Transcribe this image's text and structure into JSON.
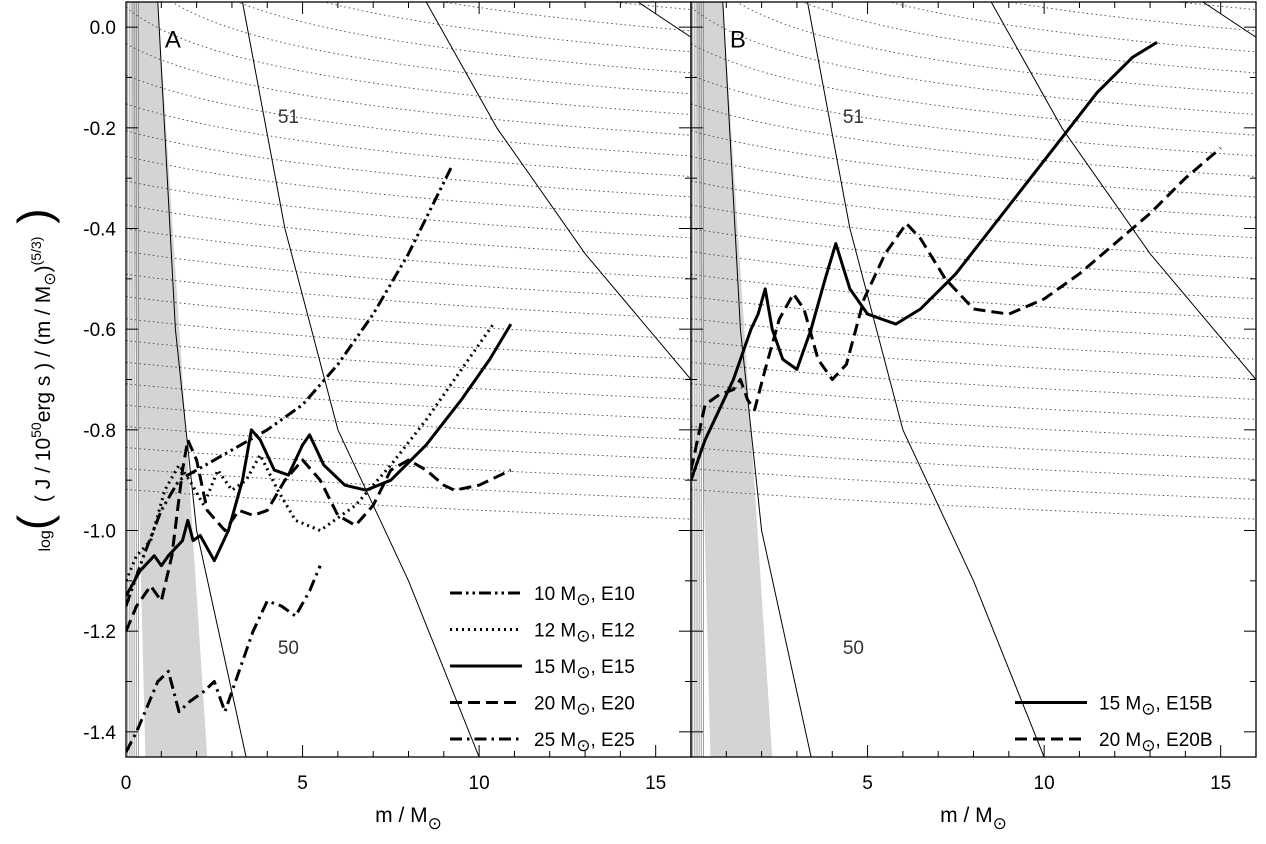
{
  "chart_data": [
    {
      "panel": "A",
      "type": "line",
      "xlabel": "m / M☉",
      "ylabel": "log( (J / 10^50 erg s) / (m / M☉)^(5/3) )",
      "xlim": [
        0,
        16
      ],
      "ylim": [
        -1.45,
        0.05
      ],
      "xticks": [
        "0",
        "5",
        "10",
        "15"
      ],
      "yticks": [
        "0.0",
        "-0.2",
        "-0.4",
        "-0.6",
        "-0.8",
        "-1.0",
        "-1.2",
        "-1.4"
      ],
      "contour_labels": [
        "51",
        "50"
      ],
      "legend_position": "bottom-right",
      "series": [
        {
          "name": "10 M☉, E10",
          "mass": "10 M",
          "model": "E10",
          "style": "dash-dot-dot",
          "x": [
            0.0,
            0.5,
            1.0,
            1.5,
            2.0,
            3.0,
            4.0,
            5.0,
            6.0,
            7.0,
            8.0,
            9.2
          ],
          "y": [
            -1.15,
            -1.05,
            -0.96,
            -0.9,
            -0.88,
            -0.84,
            -0.8,
            -0.75,
            -0.67,
            -0.57,
            -0.45,
            -0.28
          ]
        },
        {
          "name": "12 M☉, E12",
          "mass": "12 M",
          "model": "E12",
          "style": "dotted",
          "x": [
            0.0,
            0.3,
            0.7,
            1.1,
            1.5,
            1.8,
            2.2,
            2.6,
            3.0,
            3.4,
            3.8,
            4.3,
            4.8,
            5.5,
            6.5,
            7.5,
            8.5,
            9.5,
            10.4
          ],
          "y": [
            -1.1,
            -1.05,
            -1.02,
            -0.92,
            -0.87,
            -0.9,
            -0.95,
            -0.88,
            -0.92,
            -0.9,
            -0.85,
            -0.92,
            -0.98,
            -1.0,
            -0.95,
            -0.87,
            -0.78,
            -0.68,
            -0.59
          ]
        },
        {
          "name": "15 M☉, E15",
          "mass": "15 M",
          "model": "E15",
          "style": "solid",
          "x": [
            0.0,
            0.4,
            0.8,
            1.0,
            1.2,
            1.6,
            1.75,
            1.9,
            2.1,
            2.5,
            2.9,
            3.3,
            3.55,
            3.8,
            4.2,
            4.6,
            5.0,
            5.2,
            5.6,
            6.2,
            6.8,
            7.5,
            8.5,
            9.5,
            10.3,
            10.9
          ],
          "y": [
            -1.13,
            -1.08,
            -1.05,
            -1.07,
            -1.05,
            -1.02,
            -0.98,
            -1.02,
            -1.01,
            -1.06,
            -1.0,
            -0.9,
            -0.8,
            -0.82,
            -0.88,
            -0.89,
            -0.83,
            -0.81,
            -0.87,
            -0.91,
            -0.92,
            -0.9,
            -0.83,
            -0.74,
            -0.66,
            -0.59
          ]
        },
        {
          "name": "20 M☉, E20",
          "mass": "20 M",
          "model": "E20",
          "style": "dashed",
          "x": [
            0.0,
            0.3,
            0.7,
            1.0,
            1.3,
            1.6,
            1.75,
            2.0,
            2.3,
            2.8,
            3.2,
            3.6,
            4.0,
            4.5,
            5.0,
            5.5,
            6.0,
            6.5,
            7.0,
            7.5,
            8.0,
            8.5,
            9.0,
            9.3,
            10.0,
            10.9
          ],
          "y": [
            -1.2,
            -1.15,
            -1.11,
            -1.14,
            -1.05,
            -0.88,
            -0.82,
            -0.86,
            -0.96,
            -1.0,
            -0.96,
            -0.97,
            -0.96,
            -0.9,
            -0.86,
            -0.9,
            -0.97,
            -0.99,
            -0.95,
            -0.88,
            -0.86,
            -0.88,
            -0.91,
            -0.92,
            -0.91,
            -0.88
          ]
        },
        {
          "name": "25 M☉, E25",
          "mass": "25 M",
          "model": "E25",
          "style": "dash-dot",
          "x": [
            0.0,
            0.3,
            0.6,
            0.9,
            1.2,
            1.5,
            1.8,
            2.2,
            2.5,
            2.8,
            3.2,
            3.6,
            4.0,
            4.4,
            4.8,
            5.2,
            5.5
          ],
          "y": [
            -1.44,
            -1.4,
            -1.35,
            -1.3,
            -1.28,
            -1.36,
            -1.34,
            -1.32,
            -1.3,
            -1.36,
            -1.28,
            -1.2,
            -1.14,
            -1.15,
            -1.17,
            -1.12,
            -1.07
          ]
        }
      ]
    },
    {
      "panel": "B",
      "type": "line",
      "xlabel": "m / M☉",
      "xlim": [
        0,
        16
      ],
      "ylim": [
        -1.45,
        0.05
      ],
      "xticks": [
        "5",
        "10",
        "15"
      ],
      "contour_labels": [
        "51",
        "50"
      ],
      "legend_position": "bottom-right",
      "series": [
        {
          "name": "15 M☉, E15B",
          "mass": "15 M",
          "model": "E15B",
          "style": "solid",
          "x": [
            0.0,
            0.4,
            0.8,
            1.2,
            1.5,
            1.7,
            1.9,
            2.1,
            2.3,
            2.6,
            3.0,
            3.4,
            3.8,
            4.1,
            4.5,
            5.0,
            5.8,
            6.5,
            7.5,
            8.5,
            9.5,
            10.5,
            11.5,
            12.5,
            13.2
          ],
          "y": [
            -0.9,
            -0.82,
            -0.76,
            -0.7,
            -0.64,
            -0.6,
            -0.57,
            -0.52,
            -0.6,
            -0.66,
            -0.68,
            -0.6,
            -0.5,
            -0.43,
            -0.52,
            -0.57,
            -0.59,
            -0.56,
            -0.49,
            -0.4,
            -0.31,
            -0.22,
            -0.13,
            -0.06,
            -0.03
          ]
        },
        {
          "name": "20 M☉, E20B",
          "mass": "20 M",
          "model": "E20B",
          "style": "dashed",
          "x": [
            0.0,
            0.4,
            0.8,
            1.2,
            1.4,
            1.6,
            1.8,
            2.1,
            2.5,
            2.9,
            3.2,
            3.6,
            4.0,
            4.4,
            4.9,
            5.5,
            6.1,
            6.5,
            7.2,
            8.0,
            9.0,
            10.0,
            11.0,
            12.0,
            13.0,
            14.0,
            15.0
          ],
          "y": [
            -0.88,
            -0.75,
            -0.73,
            -0.72,
            -0.7,
            -0.74,
            -0.76,
            -0.68,
            -0.58,
            -0.53,
            -0.56,
            -0.66,
            -0.7,
            -0.67,
            -0.54,
            -0.45,
            -0.39,
            -0.42,
            -0.5,
            -0.56,
            -0.57,
            -0.54,
            -0.49,
            -0.43,
            -0.37,
            -0.3,
            -0.24
          ]
        }
      ]
    }
  ]
}
